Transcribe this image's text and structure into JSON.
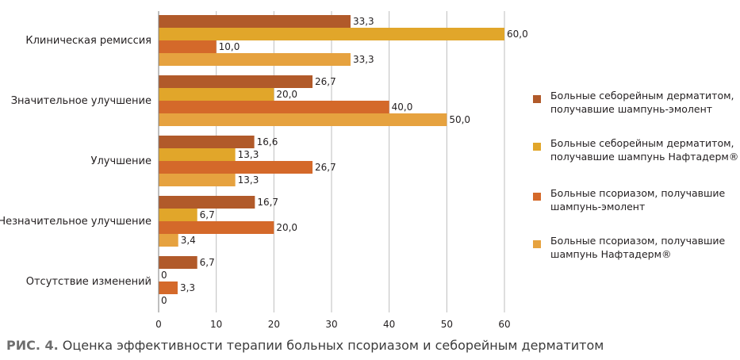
{
  "colors": {
    "seb_emolient": "#b15a2a",
    "seb_naftaderm": "#e1a62a",
    "pso_emolient": "#d4692a",
    "pso_naftaderm": "#e6a23f",
    "grid": "#bdbdbd",
    "axis": "#7f7f7f"
  },
  "caption": {
    "prefix": "РИС. 4.",
    "text": " Оценка эффективности терапии больных псориазом и себорейным дерматитом"
  },
  "chart_data": {
    "type": "bar",
    "orientation": "horizontal",
    "categories": [
      "Клиническая ремиссия",
      "Значительное улучшение",
      "Улучшение",
      "Незначительное улучшение",
      "Отсутствие изменений"
    ],
    "series": [
      {
        "name": "Больные себорейным дерматитом, получавшие шампунь-эмолент",
        "values": [
          33.3,
          26.7,
          16.6,
          16.7,
          6.7
        ],
        "labels": [
          "33,3",
          "26,7",
          "16,6",
          "16,7",
          "6,7"
        ]
      },
      {
        "name": "Больные себорейным дерматитом, получавшие шампунь Нафтадерм®",
        "values": [
          60.0,
          20.0,
          13.3,
          6.7,
          0
        ],
        "labels": [
          "60,0",
          "20,0",
          "13,3",
          "6,7",
          "0"
        ]
      },
      {
        "name": "Больные псориазом, получавшие шампунь-эмолент",
        "values": [
          10.0,
          40.0,
          26.7,
          20.0,
          3.3
        ],
        "labels": [
          "10,0",
          "40,0",
          "26,7",
          "20,0",
          "3,3"
        ]
      },
      {
        "name": "Больные псориазом, получавшие шампунь Нафтадерм®",
        "values": [
          33.3,
          50.0,
          13.3,
          3.4,
          0
        ],
        "labels": [
          "33,3",
          "50,0",
          "13,3",
          "3,4",
          "0"
        ]
      }
    ],
    "xlim": [
      0,
      60
    ],
    "xticks": [
      0,
      10,
      20,
      30,
      40,
      50,
      60
    ],
    "grid": "vertical",
    "legend_position": "right"
  },
  "legend_items": [
    {
      "line1": "Больные себорейным дерматитом,",
      "line2": "получавшие шампунь-эмолент"
    },
    {
      "line1": "Больные себорейным дерматитом,",
      "line2": "получавшие шампунь Нафтадерм®"
    },
    {
      "line1": "Больные псориазом, получавшие",
      "line2": "шампунь-эмолент"
    },
    {
      "line1": "Больные псориазом, получавшие",
      "line2": "шампунь Нафтадерм®"
    }
  ]
}
